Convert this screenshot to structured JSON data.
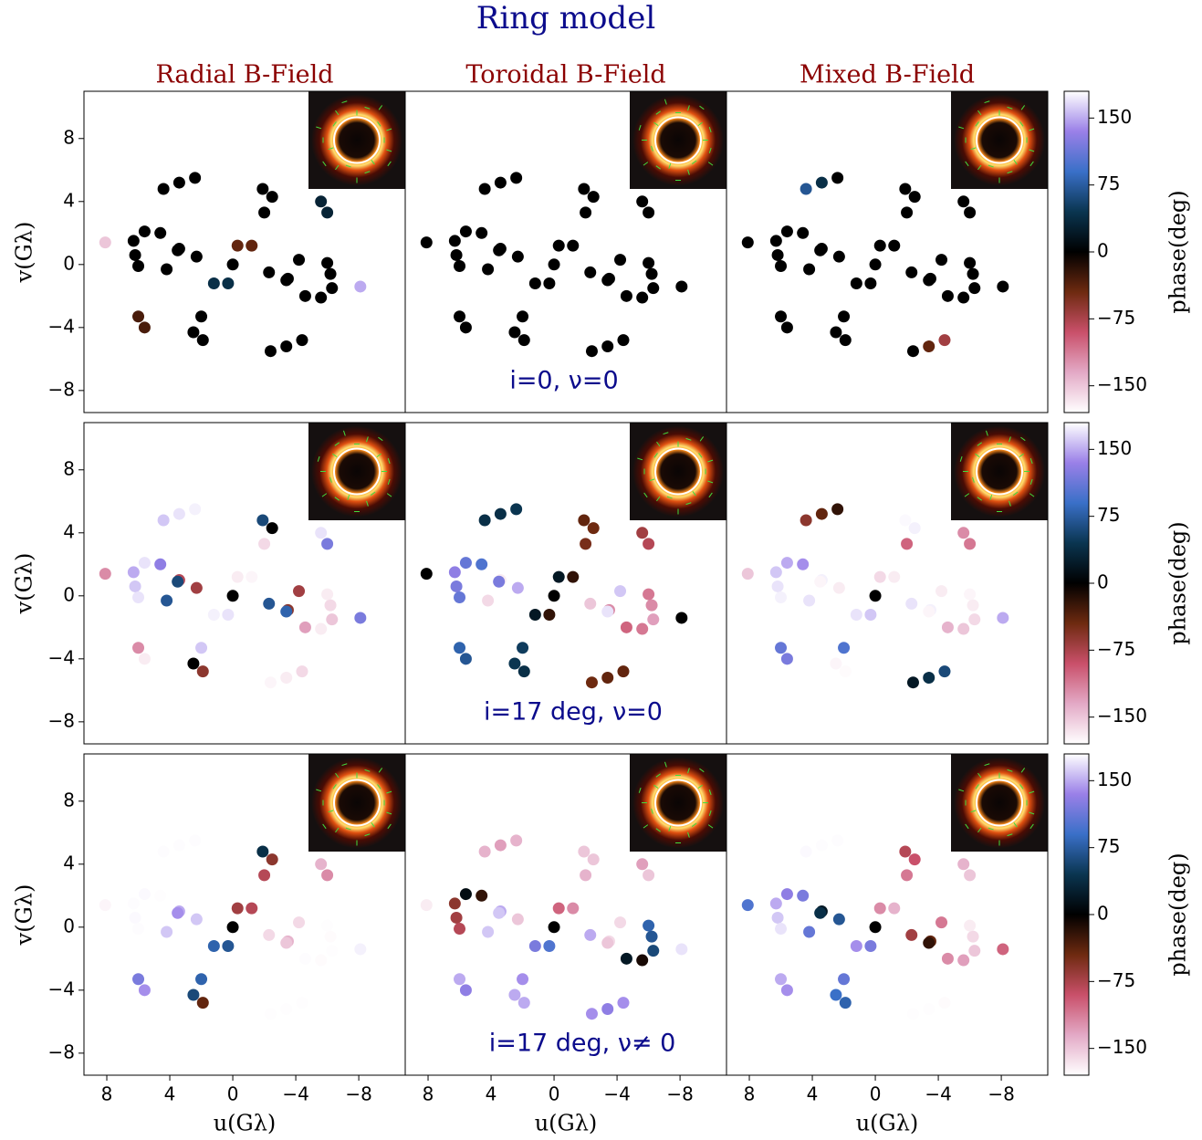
{
  "title": "Ring model",
  "chart_data": {
    "type": "scatter",
    "column_titles": [
      "Radial B-Field",
      "Toroidal B-Field",
      "Mixed B-Field"
    ],
    "row_annotations": [
      "i=0, ν=0",
      "i=17 deg, ν=0",
      "i=17 deg, ν≠ 0"
    ],
    "xlabel": "u(Gλ)",
    "ylabel": "v(Gλ)",
    "colorbar_label": "phase(deg)",
    "xlim": [
      9.45,
      -10.95
    ],
    "ylim": [
      -9.4,
      11.0
    ],
    "xticks": [
      8,
      4,
      0,
      {
        "value": -4,
        "label": "−4"
      },
      {
        "value": -8,
        "label": "−8"
      }
    ],
    "yticks": [
      {
        "value": -8,
        "label": "−8"
      },
      {
        "value": -4,
        "label": "−4"
      },
      0,
      4,
      8
    ],
    "clim": [
      -180,
      180
    ],
    "cticks": [
      {
        "value": -150,
        "label": "−150"
      },
      {
        "value": -75,
        "label": "−75"
      },
      0,
      75,
      150
    ],
    "colormap": [
      "#ffffff",
      "#e3a9c6",
      "#c9506a",
      "#6e2a10",
      "#000000",
      "#0a3550",
      "#3a70c8",
      "#9a80e8",
      "#ffffff"
    ],
    "x": [
      4.4,
      3.4,
      2.4,
      -1.9,
      -2.5,
      -2.0,
      -5.6,
      -6.0,
      5.6,
      6.3,
      6.2,
      6.0,
      3.4,
      4.2,
      -0.3,
      -1.2,
      8.1,
      -2.3,
      -3.5,
      -4.6,
      -4.4,
      -3.4,
      -2.4,
      1.9,
      2.5,
      2.0,
      5.6,
      6.0,
      -5.6,
      -6.3,
      -6.2,
      -6.0,
      -3.4,
      -4.2,
      0.3,
      1.2,
      -8.1,
      2.3,
      3.5,
      4.6,
      0
    ],
    "y": [
      4.8,
      5.2,
      5.5,
      4.8,
      4.3,
      3.3,
      4.0,
      3.3,
      2.1,
      1.5,
      0.6,
      -0.1,
      1.0,
      -0.3,
      1.2,
      1.2,
      1.4,
      -0.5,
      -0.9,
      -2.0,
      -4.8,
      -5.2,
      -5.5,
      -4.8,
      -4.3,
      -3.3,
      -4.0,
      -3.3,
      -2.1,
      -1.5,
      -0.6,
      0.1,
      -1.0,
      0.3,
      -1.2,
      -1.2,
      -1.4,
      0.5,
      0.9,
      2.0,
      0
    ],
    "panels": [
      [
        [
          0,
          0,
          0,
          0,
          0,
          0,
          30,
          30,
          0,
          0,
          0,
          0,
          0,
          0,
          -40,
          -40,
          -150,
          0,
          0,
          0,
          0,
          0,
          0,
          0,
          0,
          0,
          -30,
          -30,
          0,
          0,
          0,
          0,
          0,
          0,
          40,
          40,
          150,
          0,
          0,
          0,
          0
        ],
        [
          0,
          0,
          0,
          0,
          0,
          0,
          0,
          0,
          0,
          0,
          0,
          0,
          0,
          0,
          0,
          0,
          0,
          0,
          0,
          0,
          0,
          0,
          0,
          0,
          0,
          0,
          0,
          0,
          0,
          0,
          0,
          0,
          0,
          0,
          0,
          0,
          0,
          0,
          0,
          0,
          0
        ],
        [
          70,
          40,
          0,
          0,
          0,
          0,
          0,
          0,
          0,
          0,
          0,
          0,
          0,
          0,
          0,
          0,
          0,
          0,
          0,
          0,
          -70,
          -40,
          0,
          0,
          0,
          0,
          0,
          0,
          0,
          0,
          0,
          0,
          0,
          0,
          0,
          0,
          0,
          0,
          0,
          0,
          0
        ]
      ],
      [
        [
          160,
          170,
          175,
          60,
          0,
          -160,
          170,
          120,
          170,
          150,
          160,
          170,
          -80,
          70,
          -170,
          -175,
          -120,
          70,
          -60,
          -130,
          -160,
          -170,
          -175,
          -60,
          0,
          160,
          -170,
          -120,
          -170,
          -150,
          -160,
          -170,
          80,
          -70,
          170,
          175,
          120,
          -70,
          60,
          130,
          0
        ],
        [
          40,
          40,
          45,
          -40,
          -45,
          -50,
          -70,
          -80,
          110,
          130,
          120,
          110,
          -170,
          -160,
          20,
          -20,
          0,
          -150,
          -120,
          -100,
          -40,
          -40,
          -45,
          40,
          45,
          50,
          70,
          80,
          -110,
          -130,
          -120,
          -110,
          170,
          160,
          -20,
          20,
          0,
          150,
          120,
          100,
          0
        ],
        [
          -60,
          -40,
          -20,
          178,
          175,
          -100,
          -120,
          -110,
          150,
          160,
          170,
          175,
          175,
          170,
          -160,
          -170,
          -150,
          170,
          175,
          -140,
          60,
          40,
          20,
          -178,
          -175,
          100,
          120,
          110,
          -150,
          -160,
          -170,
          -175,
          -175,
          -170,
          160,
          170,
          150,
          -170,
          -175,
          140,
          0
        ]
      ],
      [
        [
          179,
          179,
          179,
          40,
          -60,
          -80,
          -140,
          -120,
          178,
          179,
          178,
          179,
          150,
          160,
          -70,
          -80,
          -175,
          -160,
          -140,
          179,
          -179,
          -179,
          -179,
          -40,
          60,
          80,
          140,
          120,
          -178,
          -179,
          -178,
          -179,
          -150,
          -160,
          70,
          80,
          175,
          160,
          140,
          -179,
          0
        ],
        [
          -140,
          -130,
          -140,
          -150,
          -150,
          -140,
          -130,
          -150,
          10,
          -60,
          -70,
          -80,
          150,
          160,
          -100,
          -120,
          -170,
          150,
          -160,
          20,
          140,
          130,
          140,
          150,
          150,
          140,
          130,
          150,
          -10,
          60,
          70,
          80,
          -150,
          -160,
          100,
          120,
          170,
          -150,
          160,
          -20,
          0
        ],
        [
          178,
          179,
          179,
          -80,
          -90,
          -110,
          -140,
          -150,
          130,
          150,
          160,
          170,
          20,
          110,
          -120,
          -140,
          100,
          -70,
          -40,
          -120,
          -178,
          -179,
          -179,
          80,
          90,
          110,
          140,
          150,
          -130,
          -150,
          -160,
          -170,
          -20,
          -110,
          120,
          140,
          -100,
          70,
          40,
          120,
          0
        ]
      ]
    ]
  }
}
